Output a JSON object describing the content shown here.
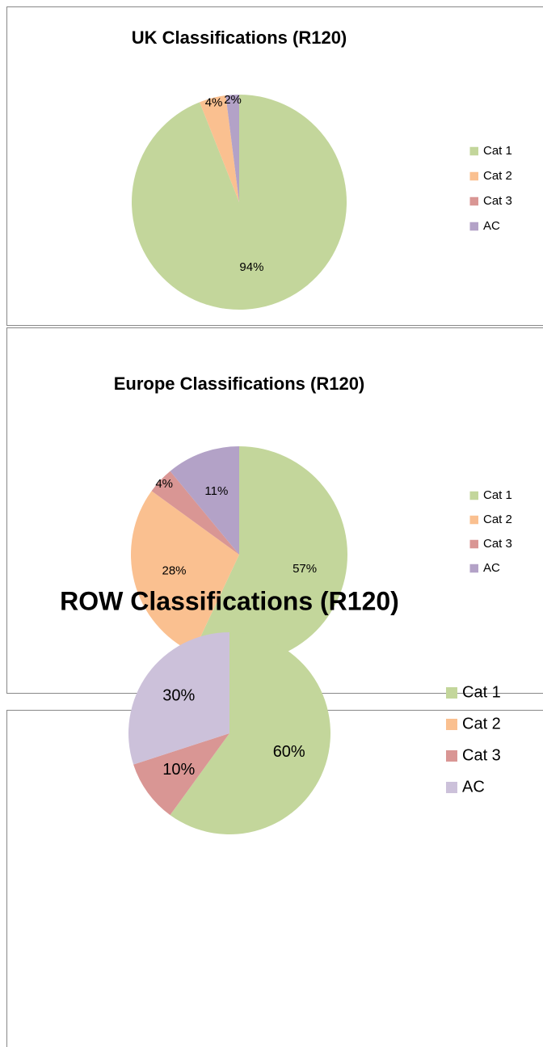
{
  "chart_data": [
    {
      "type": "pie",
      "title": "UK Classifications (R120)",
      "categories": [
        "Cat 1",
        "Cat 2",
        "Cat 3",
        "AC"
      ],
      "values": [
        94,
        4,
        0,
        2
      ],
      "value_labels": [
        "94%",
        "4%",
        null,
        "2%"
      ],
      "colors": [
        "#c3d69b",
        "#fac090",
        "#d99694",
        "#b3a2c7"
      ],
      "legend": "right"
    },
    {
      "type": "pie",
      "title": "Europe Classifications (R120)",
      "categories": [
        "Cat 1",
        "Cat 2",
        "Cat 3",
        "AC"
      ],
      "values": [
        57,
        28,
        4,
        11
      ],
      "value_labels": [
        "57%",
        "28%",
        "4%",
        "11%"
      ],
      "colors": [
        "#c3d69b",
        "#fac090",
        "#d99694",
        "#b3a2c7"
      ],
      "legend": "right"
    },
    {
      "type": "pie",
      "title": "ROW Classifications (R120)",
      "categories": [
        "Cat 1",
        "Cat 2",
        "Cat 3",
        "AC"
      ],
      "values": [
        60,
        0,
        10,
        30
      ],
      "value_labels": [
        "60%",
        null,
        "10%",
        "30%"
      ],
      "colors": [
        "#c3d69b",
        "#fac090",
        "#d99694",
        "#ccc1da"
      ],
      "legend": "right"
    }
  ]
}
